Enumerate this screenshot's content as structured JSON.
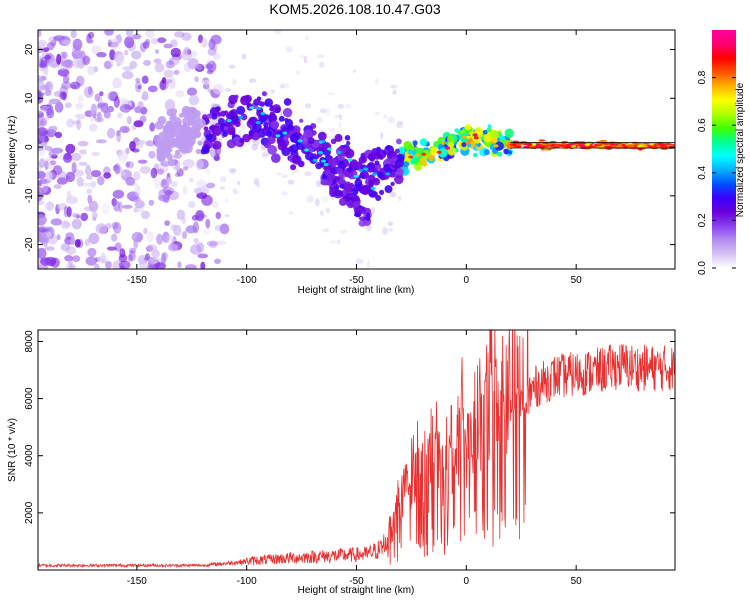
{
  "title": "KOM5.2026.108.10.47.G03",
  "chart_data": [
    {
      "type": "heatmap",
      "name": "spectrogram",
      "xlabel": "Height of straight line (km)",
      "ylabel": "Frequency (Hz)",
      "xlim": [
        -195,
        95
      ],
      "ylim": [
        -25,
        24
      ],
      "xticks": [
        -150,
        -100,
        -50,
        0,
        50
      ],
      "yticks": [
        -20,
        -10,
        0,
        10,
        20
      ],
      "ridge": {
        "x": [
          -140,
          -120,
          -105,
          -95,
          -85,
          -75,
          -65,
          -55,
          -45,
          -35,
          -25,
          -15,
          -5,
          0,
          5,
          10,
          20,
          30,
          95
        ],
        "frequency": [
          2,
          3,
          5,
          6,
          4,
          1,
          -2,
          -4,
          -6,
          -4,
          -2,
          -1,
          1,
          2,
          2,
          1,
          0.5,
          0.3,
          0.3
        ]
      },
      "branch": {
        "x": [
          -65,
          -57,
          -50,
          -44
        ],
        "frequency": [
          -5,
          -8,
          -12,
          -15
        ]
      },
      "colorbar": {
        "label": "Normalized spectral amplitude",
        "ticks": [
          "0.0",
          "0.2",
          "0.4",
          "0.6",
          "0.8"
        ],
        "range": [
          0,
          1
        ],
        "colors": [
          "#ffffff",
          "#d6c2f5",
          "#b48cf0",
          "#8a3ff0",
          "#6a00d8",
          "#3a00ff",
          "#0050ff",
          "#00b0ff",
          "#00ffff",
          "#00ff90",
          "#40ff00",
          "#b0ff00",
          "#ffff00",
          "#ffb000",
          "#ff5000",
          "#ff0000",
          "#ff0070",
          "#ff00a0"
        ]
      }
    },
    {
      "type": "line",
      "name": "snr",
      "xlabel": "Height of straight line (km)",
      "ylabel": "SNR (10 * v/v)",
      "xlim": [
        -195,
        95
      ],
      "ylim": [
        0,
        8400
      ],
      "xticks": [
        -150,
        -100,
        -50,
        0,
        50
      ],
      "yticks": [
        2000,
        4000,
        6000,
        8000
      ],
      "color": "#e83030",
      "envelope": {
        "x": [
          -195,
          -150,
          -120,
          -100,
          -80,
          -60,
          -45,
          -38,
          -35,
          -30,
          -25,
          -20,
          -15,
          -10,
          -5,
          0,
          5,
          10,
          15,
          20,
          25,
          30,
          35,
          40,
          50,
          60,
          70,
          80,
          95
        ],
        "snr": [
          150,
          150,
          150,
          280,
          380,
          450,
          500,
          700,
          1200,
          2200,
          2800,
          3000,
          3200,
          3500,
          3900,
          4300,
          4700,
          4900,
          5100,
          5300,
          5700,
          6200,
          6400,
          6600,
          6700,
          6800,
          7000,
          6900,
          6900
        ]
      }
    }
  ]
}
